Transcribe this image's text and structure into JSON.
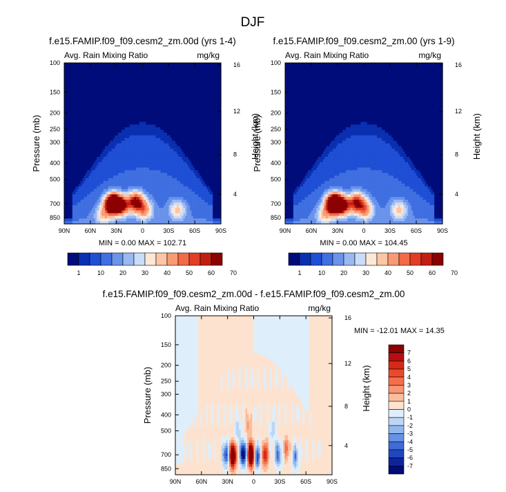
{
  "figure": {
    "title": "DJF"
  },
  "chart_data": [
    {
      "type": "heatmap",
      "panel": "top-left",
      "title": "f.e15.FAMIP.f09_f09.cesm2_zm.00d (yrs 1-4)",
      "subtitle_left": "Avg. Rain Mixing Ratio",
      "subtitle_right": "mg/kg",
      "ylabel": "Pressure (mb)",
      "ylabel_right": "Height (km)",
      "x_ticks": [
        "90N",
        "60N",
        "30N",
        "0",
        "30S",
        "60S",
        "90S"
      ],
      "x_tick_lat": [
        90,
        60,
        30,
        0,
        -30,
        -60,
        -90
      ],
      "y_ticks": [
        100,
        150,
        200,
        250,
        300,
        400,
        500,
        700,
        850
      ],
      "y_right_ticks": [
        16,
        12,
        8,
        4
      ],
      "min_max": "MIN =   0.00   MAX = 102.71",
      "min": 0.0,
      "max": 102.71,
      "colorbar": {
        "orientation": "horizontal",
        "labels": [
          "1",
          "10",
          "20",
          "30",
          "40",
          "50",
          "60",
          "70"
        ],
        "colors": [
          "#000c7a",
          "#0a2fb0",
          "#1f4fd4",
          "#3f6fe0",
          "#6a93ea",
          "#9ab8f2",
          "#c9dcf9",
          "#fde8d6",
          "#fcc5a5",
          "#f99a74",
          "#f26a47",
          "#e33d25",
          "#c11f12",
          "#8b0000"
        ]
      },
      "blobs": [
        {
          "lat": 34,
          "p": 700,
          "v": 102.71
        },
        {
          "lat": 8,
          "p": 680,
          "v": 55
        },
        {
          "lat": 24,
          "p": 720,
          "v": 48
        },
        {
          "lat": -2,
          "p": 760,
          "v": 32
        },
        {
          "lat": 45,
          "p": 820,
          "v": 22
        },
        {
          "lat": -40,
          "p": 760,
          "v": 24
        }
      ]
    },
    {
      "type": "heatmap",
      "panel": "top-right",
      "title": "f.e15.FAMIP.f09_f09.cesm2_zm.00 (yrs 1-9)",
      "subtitle_left": "Avg. Rain Mixing Ratio",
      "subtitle_right": "mg/kg",
      "ylabel": "Pressure (mb)",
      "ylabel_right": "Height (km)",
      "x_ticks": [
        "90N",
        "60N",
        "30N",
        "0",
        "30S",
        "60S",
        "90S"
      ],
      "x_tick_lat": [
        90,
        60,
        30,
        0,
        -30,
        -60,
        -90
      ],
      "y_ticks": [
        100,
        150,
        200,
        250,
        300,
        400,
        500,
        700,
        850
      ],
      "y_right_ticks": [
        16,
        12,
        8,
        4
      ],
      "min_max": "MIN =   0.00   MAX = 104.45",
      "min": 0.0,
      "max": 104.45,
      "colorbar": {
        "orientation": "horizontal",
        "labels": [
          "1",
          "10",
          "20",
          "30",
          "40",
          "50",
          "60",
          "70"
        ],
        "colors": [
          "#000c7a",
          "#0a2fb0",
          "#1f4fd4",
          "#3f6fe0",
          "#6a93ea",
          "#9ab8f2",
          "#c9dcf9",
          "#fde8d6",
          "#fcc5a5",
          "#f99a74",
          "#f26a47",
          "#e33d25",
          "#c11f12",
          "#8b0000"
        ]
      },
      "blobs": [
        {
          "lat": 34,
          "p": 700,
          "v": 104.45
        },
        {
          "lat": 8,
          "p": 690,
          "v": 50
        },
        {
          "lat": 24,
          "p": 720,
          "v": 50
        },
        {
          "lat": -2,
          "p": 760,
          "v": 30
        },
        {
          "lat": 45,
          "p": 820,
          "v": 22
        },
        {
          "lat": -40,
          "p": 760,
          "v": 24
        }
      ]
    },
    {
      "type": "heatmap",
      "panel": "bottom",
      "title": "f.e15.FAMIP.f09_f09.cesm2_zm.00d - f.e15.FAMIP.f09_f09.cesm2_zm.00",
      "subtitle_left": "Avg. Rain Mixing Ratio",
      "subtitle_right": "mg/kg",
      "ylabel": "Pressure (mb)",
      "ylabel_right": "Height (km)",
      "x_ticks": [
        "90N",
        "60N",
        "30N",
        "0",
        "30S",
        "60S",
        "90S"
      ],
      "x_tick_lat": [
        90,
        60,
        30,
        0,
        -30,
        -60,
        -90
      ],
      "y_ticks": [
        100,
        150,
        200,
        250,
        300,
        400,
        500,
        700,
        850
      ],
      "y_right_ticks": [
        16,
        12,
        8,
        4
      ],
      "min_max": "MIN = -12.01   MAX =  14.35",
      "min": -12.01,
      "max": 14.35,
      "colorbar": {
        "orientation": "vertical",
        "labels": [
          "7",
          "6",
          "5",
          "4",
          "3",
          "2",
          "1",
          "0",
          "-1",
          "-2",
          "-3",
          "-4",
          "-5",
          "-6",
          "-7"
        ],
        "colors": [
          "#8b0000",
          "#b50f0f",
          "#d42a18",
          "#ea4a2c",
          "#f56f4b",
          "#f99572",
          "#fbbd9d",
          "#fde3cf",
          "#dfeefb",
          "#bcd7f5",
          "#91b7ee",
          "#6592e4",
          "#3e6bd6",
          "#1f47c0",
          "#0c2699",
          "#000c7a"
        ]
      },
      "blobs": [
        {
          "lat": 3,
          "p": 700,
          "v": 13
        },
        {
          "lat": 24,
          "p": 710,
          "v": 12
        },
        {
          "lat": -13,
          "p": 700,
          "v": 6
        },
        {
          "lat": 12,
          "p": 690,
          "v": -9
        },
        {
          "lat": -4,
          "p": 720,
          "v": -6
        },
        {
          "lat": 32,
          "p": 700,
          "v": -6
        },
        {
          "lat": -28,
          "p": 700,
          "v": -5
        },
        {
          "lat": -38,
          "p": 640,
          "v": 3
        },
        {
          "lat": -48,
          "p": 720,
          "v": -4
        },
        {
          "lat": 18,
          "p": 500,
          "v": -2
        },
        {
          "lat": -22,
          "p": 500,
          "v": -2
        },
        {
          "lat": 6,
          "p": 460,
          "v": 2
        }
      ]
    }
  ]
}
